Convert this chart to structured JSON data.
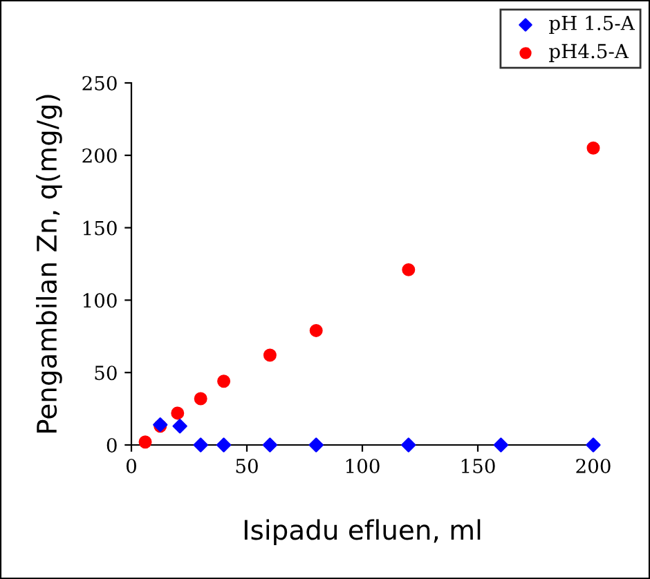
{
  "chart_data": {
    "type": "scatter",
    "xlabel": "Isipadu efluen, ml",
    "ylabel": "Pengambilan Zn, q(mg/g)",
    "xlim": [
      0,
      200
    ],
    "xticks": [
      0,
      50,
      100,
      150,
      200
    ],
    "ylim": [
      0,
      250
    ],
    "yticks": [
      0,
      50,
      100,
      150,
      200,
      250
    ],
    "grid": false,
    "legend": "top right",
    "series": [
      {
        "name": "pH 1.5-A",
        "color": "#0000ff",
        "marker": "diamond",
        "x": [
          12.5,
          21,
          30,
          40,
          60,
          80,
          120,
          160,
          200
        ],
        "values": [
          14,
          13,
          0,
          0,
          0,
          0,
          0,
          0,
          0
        ]
      },
      {
        "name": "pH4.5-A",
        "color": "#ff0000",
        "marker": "circle",
        "x": [
          6,
          12.5,
          20,
          30,
          40,
          60,
          80,
          120,
          200
        ],
        "values": [
          2,
          13,
          22,
          32,
          44,
          62,
          79,
          121,
          205
        ]
      }
    ]
  }
}
